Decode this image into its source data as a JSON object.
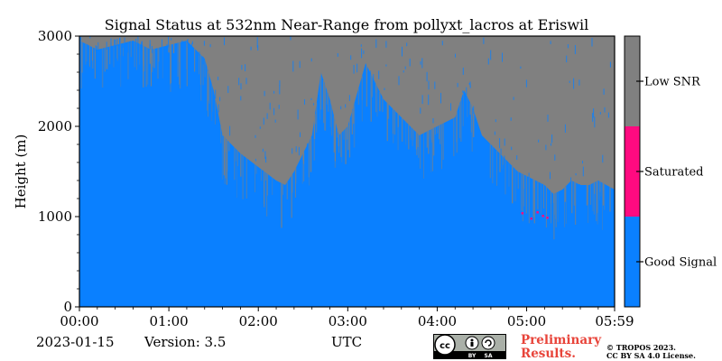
{
  "chart_data": {
    "type": "heatmap",
    "title": "Signal Status at 532nm Near-Range from pollyxt_lacros at Eriswil",
    "ylabel": "Height (m)",
    "xlabel": "UTC",
    "x_ticks": [
      "00:00",
      "01:00",
      "02:00",
      "03:00",
      "04:00",
      "05:00",
      "05:59"
    ],
    "y_ticks": [
      "0",
      "1000",
      "2000",
      "3000"
    ],
    "xlim_hours": [
      0,
      5.9833
    ],
    "ylim_m": [
      0,
      3000
    ],
    "categories": [
      {
        "name": "Good Signal",
        "color": "#0a80ff"
      },
      {
        "name": "Saturated",
        "color": "#ff0a80"
      },
      {
        "name": "Low SNR",
        "color": "#808080"
      }
    ],
    "low_snr_lower_boundary": {
      "time_hours": [
        0.0,
        0.2,
        0.4,
        0.6,
        0.8,
        1.0,
        1.2,
        1.4,
        1.5,
        1.6,
        1.8,
        2.0,
        2.2,
        2.3,
        2.4,
        2.5,
        2.6,
        2.7,
        2.8,
        2.9,
        3.0,
        3.2,
        3.4,
        3.6,
        3.8,
        4.0,
        4.2,
        4.3,
        4.4,
        4.5,
        4.6,
        4.7,
        4.8,
        4.9,
        5.0,
        5.1,
        5.2,
        5.3,
        5.4,
        5.5,
        5.6,
        5.7,
        5.8,
        5.9833
      ],
      "height_m": [
        2950,
        2850,
        2900,
        2950,
        2850,
        2900,
        2950,
        2750,
        2400,
        1900,
        1700,
        1550,
        1400,
        1350,
        1500,
        1700,
        1900,
        2600,
        2300,
        1900,
        2000,
        2700,
        2300,
        2100,
        1900,
        2000,
        2100,
        2400,
        2200,
        1900,
        1800,
        1700,
        1600,
        1500,
        1450,
        1400,
        1350,
        1250,
        1300,
        1400,
        1350,
        1350,
        1400,
        1300
      ]
    },
    "saturated_points": [
      {
        "time_hours": 4.95,
        "height_m": 1040
      },
      {
        "time_hours": 5.05,
        "height_m": 980
      },
      {
        "time_hours": 5.12,
        "height_m": 1050
      },
      {
        "time_hours": 5.18,
        "height_m": 1010
      },
      {
        "time_hours": 5.23,
        "height_m": 990
      }
    ]
  },
  "footer": {
    "date": "2023-01-15",
    "version": "Version: 3.5",
    "utc_label": "UTC",
    "preliminary_line1": "Preliminary",
    "preliminary_line2": "Results.",
    "copyright_line1": "© TROPOS 2023.",
    "copyright_line2": "CC BY SA 4.0 License.",
    "license_badge": {
      "by": "BY",
      "sa": "SA",
      "cc": "cc"
    }
  }
}
